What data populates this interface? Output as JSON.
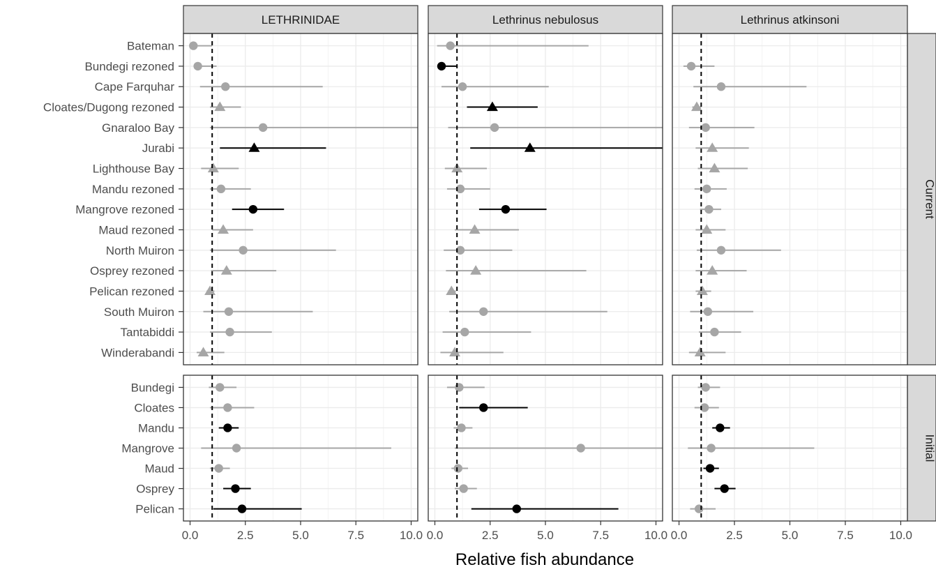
{
  "chart_data": {
    "type": "scatter",
    "subtype": "faceted point-range (forest) plot",
    "xlabel": "Relative fish abundance",
    "ylabel": "",
    "xlim": [
      -0.3,
      10.3
    ],
    "xticks": [
      0,
      2.5,
      5,
      7.5,
      10
    ],
    "xtick_labels": [
      "0.0",
      "2.5",
      "5.0",
      "7.5",
      "10.0"
    ],
    "reference_line_x": 1,
    "reference_line_style": "dashed",
    "grid": true,
    "legend": "none",
    "colors": {
      "significant": "#000000",
      "non_significant": "#a6a6a6",
      "strip_bg": "#d9d9d9",
      "grid": "#ebebeb",
      "border": "#333333"
    },
    "facet_columns": [
      "LETHRINIDAE",
      "Lethrinus nebulosus",
      "Lethrinus atkinsoni"
    ],
    "facet_rows": [
      {
        "label": "Current",
        "sites": [
          "Bateman",
          "Bundegi rezoned",
          "Cape Farquhar",
          "Cloates/Dugong rezoned",
          "Gnaraloo Bay",
          "Jurabi",
          "Lighthouse Bay",
          "Mandu rezoned",
          "Mangrove rezoned",
          "Maud rezoned",
          "North Muiron",
          "Osprey rezoned",
          "Pelican rezoned",
          "South Muiron",
          "Tantabiddi",
          "Winderabandi"
        ],
        "panels": [
          [
            {
              "est": 0.15,
              "lo": 0.1,
              "hi": 1.0,
              "shape": "circle",
              "sig": false
            },
            {
              "est": 0.35,
              "lo": 0.2,
              "hi": 1.2,
              "shape": "circle",
              "sig": false
            },
            {
              "est": 1.6,
              "lo": 0.45,
              "hi": 6.0,
              "shape": "circle",
              "sig": false
            },
            {
              "est": 1.35,
              "lo": 0.9,
              "hi": 2.3,
              "shape": "triangle",
              "sig": false
            },
            {
              "est": 3.3,
              "lo": 0.9,
              "hi": 11.0,
              "shape": "circle",
              "sig": false
            },
            {
              "est": 2.9,
              "lo": 1.35,
              "hi": 6.15,
              "shape": "triangle",
              "sig": true
            },
            {
              "est": 1.05,
              "lo": 0.5,
              "hi": 2.2,
              "shape": "triangle",
              "sig": false
            },
            {
              "est": 1.4,
              "lo": 0.9,
              "hi": 2.75,
              "shape": "circle",
              "sig": false
            },
            {
              "est": 2.85,
              "lo": 1.9,
              "hi": 4.25,
              "shape": "circle",
              "sig": true
            },
            {
              "est": 1.5,
              "lo": 1.0,
              "hi": 2.85,
              "shape": "triangle",
              "sig": false
            },
            {
              "est": 2.4,
              "lo": 0.9,
              "hi": 6.6,
              "shape": "circle",
              "sig": false
            },
            {
              "est": 1.65,
              "lo": 0.95,
              "hi": 3.9,
              "shape": "triangle",
              "sig": false
            },
            {
              "est": 0.9,
              "lo": 0.75,
              "hi": 1.1,
              "shape": "triangle",
              "sig": false
            },
            {
              "est": 1.75,
              "lo": 0.6,
              "hi": 5.55,
              "shape": "circle",
              "sig": false
            },
            {
              "est": 1.8,
              "lo": 0.9,
              "hi": 3.7,
              "shape": "circle",
              "sig": false
            },
            {
              "est": 0.6,
              "lo": 0.3,
              "hi": 1.55,
              "shape": "triangle",
              "sig": false
            }
          ],
          [
            {
              "est": 0.7,
              "lo": 0.1,
              "hi": 6.95,
              "shape": "circle",
              "sig": false
            },
            {
              "est": 0.3,
              "lo": 0.2,
              "hi": 1.0,
              "shape": "circle",
              "sig": true
            },
            {
              "est": 1.25,
              "lo": 0.3,
              "hi": 5.15,
              "shape": "circle",
              "sig": false
            },
            {
              "est": 2.6,
              "lo": 1.45,
              "hi": 4.65,
              "shape": "triangle",
              "sig": true
            },
            {
              "est": 2.7,
              "lo": 0.6,
              "hi": 11.0,
              "shape": "circle",
              "sig": false
            },
            {
              "est": 4.3,
              "lo": 1.6,
              "hi": 11.0,
              "shape": "triangle",
              "sig": true
            },
            {
              "est": 1.0,
              "lo": 0.45,
              "hi": 2.35,
              "shape": "triangle",
              "sig": false
            },
            {
              "est": 1.15,
              "lo": 0.55,
              "hi": 2.5,
              "shape": "circle",
              "sig": false
            },
            {
              "est": 3.2,
              "lo": 2.0,
              "hi": 5.05,
              "shape": "circle",
              "sig": true
            },
            {
              "est": 1.8,
              "lo": 0.9,
              "hi": 3.8,
              "shape": "triangle",
              "sig": false
            },
            {
              "est": 1.15,
              "lo": 0.4,
              "hi": 3.5,
              "shape": "circle",
              "sig": false
            },
            {
              "est": 1.85,
              "lo": 0.5,
              "hi": 6.85,
              "shape": "triangle",
              "sig": false
            },
            {
              "est": 0.75,
              "lo": 0.6,
              "hi": 0.95,
              "shape": "triangle",
              "sig": false
            },
            {
              "est": 2.2,
              "lo": 0.65,
              "hi": 7.8,
              "shape": "circle",
              "sig": false
            },
            {
              "est": 1.35,
              "lo": 0.35,
              "hi": 4.35,
              "shape": "circle",
              "sig": false
            },
            {
              "est": 0.9,
              "lo": 0.25,
              "hi": 3.1,
              "shape": "triangle",
              "sig": false
            }
          ],
          [
            {
              "est": null,
              "lo": null,
              "hi": null,
              "shape": "circle",
              "sig": false
            },
            {
              "est": 0.55,
              "lo": 0.2,
              "hi": 1.6,
              "shape": "circle",
              "sig": false
            },
            {
              "est": 1.9,
              "lo": 0.65,
              "hi": 5.75,
              "shape": "circle",
              "sig": false
            },
            {
              "est": 0.8,
              "lo": 0.6,
              "hi": 1.0,
              "shape": "triangle",
              "sig": false
            },
            {
              "est": 1.2,
              "lo": 0.45,
              "hi": 3.4,
              "shape": "circle",
              "sig": false
            },
            {
              "est": 1.5,
              "lo": 0.75,
              "hi": 3.15,
              "shape": "triangle",
              "sig": false
            },
            {
              "est": 1.6,
              "lo": 0.85,
              "hi": 3.1,
              "shape": "triangle",
              "sig": false
            },
            {
              "est": 1.25,
              "lo": 0.7,
              "hi": 2.15,
              "shape": "circle",
              "sig": false
            },
            {
              "est": 1.35,
              "lo": 0.95,
              "hi": 1.9,
              "shape": "circle",
              "sig": false
            },
            {
              "est": 1.25,
              "lo": 0.75,
              "hi": 2.1,
              "shape": "triangle",
              "sig": false
            },
            {
              "est": 1.9,
              "lo": 0.8,
              "hi": 4.6,
              "shape": "circle",
              "sig": false
            },
            {
              "est": 1.5,
              "lo": 0.75,
              "hi": 3.05,
              "shape": "triangle",
              "sig": false
            },
            {
              "est": 1.05,
              "lo": 0.75,
              "hi": 1.45,
              "shape": "triangle",
              "sig": false
            },
            {
              "est": 1.3,
              "lo": 0.5,
              "hi": 3.35,
              "shape": "circle",
              "sig": false
            },
            {
              "est": 1.6,
              "lo": 0.9,
              "hi": 2.8,
              "shape": "circle",
              "sig": false
            },
            {
              "est": 0.95,
              "lo": 0.45,
              "hi": 2.1,
              "shape": "triangle",
              "sig": false
            }
          ]
        ]
      },
      {
        "label": "Initial",
        "sites": [
          "Bundegi",
          "Cloates",
          "Mandu",
          "Mangrove",
          "Maud",
          "Osprey",
          "Pelican"
        ],
        "panels": [
          [
            {
              "est": 1.35,
              "lo": 0.85,
              "hi": 2.1,
              "shape": "circle",
              "sig": false
            },
            {
              "est": 1.7,
              "lo": 0.9,
              "hi": 2.9,
              "shape": "circle",
              "sig": false
            },
            {
              "est": 1.7,
              "lo": 1.3,
              "hi": 2.2,
              "shape": "circle",
              "sig": true
            },
            {
              "est": 2.1,
              "lo": 0.5,
              "hi": 9.1,
              "shape": "circle",
              "sig": false
            },
            {
              "est": 1.3,
              "lo": 0.9,
              "hi": 1.8,
              "shape": "circle",
              "sig": false
            },
            {
              "est": 2.05,
              "lo": 1.5,
              "hi": 2.75,
              "shape": "circle",
              "sig": true
            },
            {
              "est": 2.35,
              "lo": 1.05,
              "hi": 5.05,
              "shape": "circle",
              "sig": true
            }
          ],
          [
            {
              "est": 1.1,
              "lo": 0.55,
              "hi": 2.25,
              "shape": "circle",
              "sig": false
            },
            {
              "est": 2.2,
              "lo": 1.1,
              "hi": 4.2,
              "shape": "circle",
              "sig": true
            },
            {
              "est": 1.2,
              "lo": 0.85,
              "hi": 1.7,
              "shape": "circle",
              "sig": false
            },
            {
              "est": 6.6,
              "lo": 0.9,
              "hi": 11.0,
              "shape": "circle",
              "sig": false
            },
            {
              "est": 1.05,
              "lo": 0.75,
              "hi": 1.5,
              "shape": "circle",
              "sig": false
            },
            {
              "est": 1.3,
              "lo": 0.9,
              "hi": 1.9,
              "shape": "circle",
              "sig": false
            },
            {
              "est": 3.7,
              "lo": 1.65,
              "hi": 8.3,
              "shape": "circle",
              "sig": true
            }
          ],
          [
            {
              "est": 1.2,
              "lo": 0.85,
              "hi": 1.85,
              "shape": "circle",
              "sig": false
            },
            {
              "est": 1.15,
              "lo": 0.7,
              "hi": 1.8,
              "shape": "circle",
              "sig": false
            },
            {
              "est": 1.85,
              "lo": 1.5,
              "hi": 2.3,
              "shape": "circle",
              "sig": true
            },
            {
              "est": 1.45,
              "lo": 0.4,
              "hi": 6.1,
              "shape": "circle",
              "sig": false
            },
            {
              "est": 1.4,
              "lo": 1.1,
              "hi": 1.8,
              "shape": "circle",
              "sig": true
            },
            {
              "est": 2.05,
              "lo": 1.6,
              "hi": 2.55,
              "shape": "circle",
              "sig": true
            },
            {
              "est": 0.9,
              "lo": 0.5,
              "hi": 1.65,
              "shape": "circle",
              "sig": false
            }
          ]
        ]
      }
    ]
  }
}
